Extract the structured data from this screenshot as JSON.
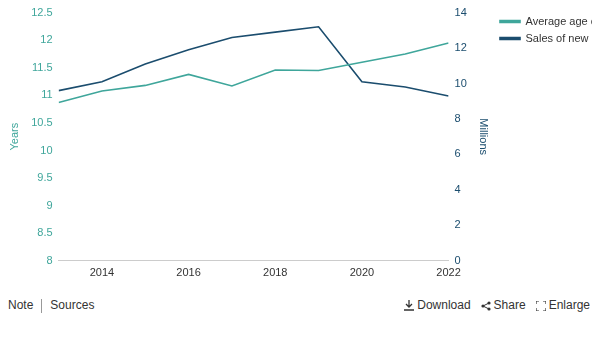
{
  "chart_data": {
    "type": "line",
    "x": [
      2013,
      2014,
      2015,
      2016,
      2017,
      2018,
      2019,
      2020,
      2021,
      2022
    ],
    "xlim": [
      2013,
      2022
    ],
    "xticks": [
      2014,
      2016,
      2018,
      2020,
      2022
    ],
    "ylim": [
      8,
      12.5
    ],
    "yticks": [
      8,
      8.5,
      9,
      9.5,
      10,
      10.5,
      11,
      11.5,
      12,
      12.5
    ],
    "y2lim": [
      0,
      14
    ],
    "y2ticks": [
      0,
      2,
      4,
      6,
      8,
      10,
      12,
      14
    ],
    "ylabel": "Years",
    "y2label": "Millions",
    "grid": false,
    "legend": "right",
    "series": [
      {
        "name": "Average age of passenger cars (left axis)",
        "color": "#3fa69b",
        "axis": "y",
        "values": [
          10.87,
          11.08,
          11.18,
          11.38,
          11.17,
          11.46,
          11.45,
          11.6,
          11.75,
          11.95
        ]
      },
      {
        "name": "Sales of new passenger cars (right axis)",
        "color": "#1b4d6e",
        "axis": "y2",
        "values": [
          9.6,
          10.1,
          11.1,
          11.9,
          12.6,
          12.9,
          13.2,
          10.1,
          9.8,
          9.3
        ]
      }
    ]
  },
  "footer": {
    "left": [
      "Note",
      "Sources"
    ],
    "right": [
      "Download",
      "Share",
      "Enlarge"
    ]
  }
}
